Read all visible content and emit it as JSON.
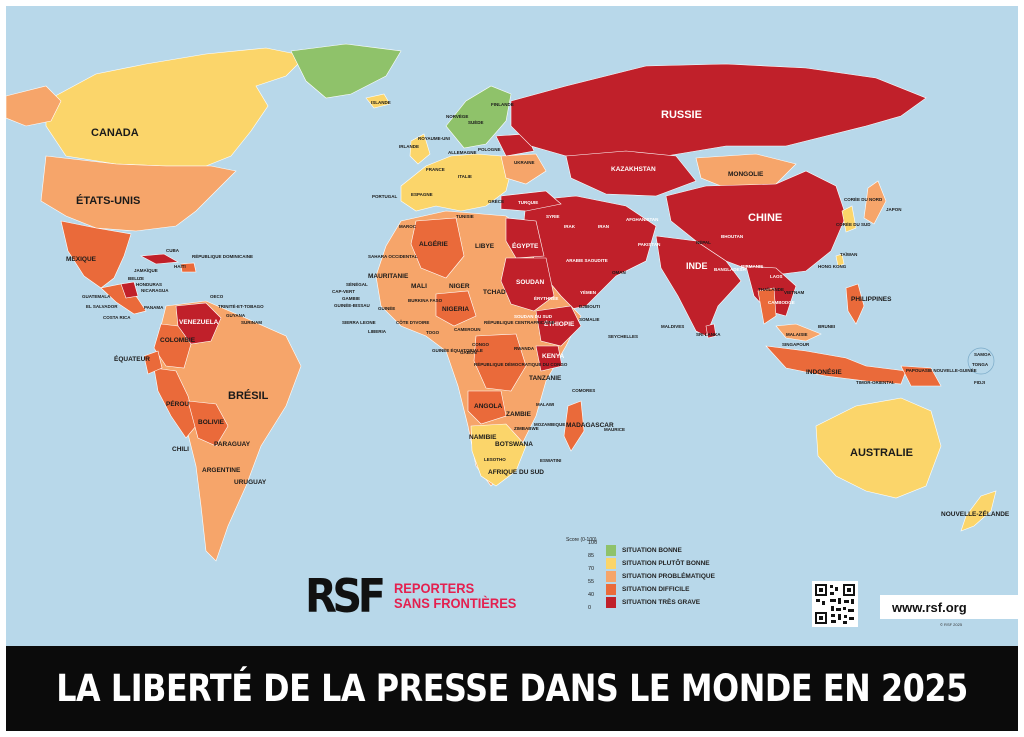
{
  "title": "LA LIBERTÉ DE LA PRESSE DANS LE MONDE EN 2025",
  "colors": {
    "ocean": "#b8d8ea",
    "bonne": "#8fc26a",
    "plutot_bonne": "#fbd56a",
    "problematique": "#f6a56a",
    "difficile": "#ea6a3a",
    "tres_grave": "#c0202a",
    "banner": "#0b0b0b",
    "brand": "#e4204f"
  },
  "legend": {
    "title": "Score (0-100)",
    "ticks": [
      "100",
      "85",
      "70",
      "55",
      "40",
      "0"
    ],
    "items": [
      {
        "label": "SITUATION BONNE",
        "color": "#8fc26a"
      },
      {
        "label": "SITUATION PLUTÔT BONNE",
        "color": "#fbd56a"
      },
      {
        "label": "SITUATION PROBLÉMATIQUE",
        "color": "#f6a56a"
      },
      {
        "label": "SITUATION DIFFICILE",
        "color": "#ea6a3a"
      },
      {
        "label": "SITUATION TRÈS GRAVE",
        "color": "#c0202a"
      }
    ]
  },
  "logo": {
    "mark": "RSF",
    "line1": "REPORTERS",
    "line2": "SANS FRONTIÈRES"
  },
  "url": "www.rsf.org",
  "credit": "© RSF 2025",
  "labels": {
    "russie": "RUSSIE",
    "canada": "CANADA",
    "etats_unis": "ÉTATS-UNIS",
    "chine": "CHINE",
    "bresil": "BRÉSIL",
    "australie": "AUSTRALIE",
    "inde": "INDE",
    "mongolie": "MONGOLIE",
    "kazakhstan": "KAZAKHSTAN",
    "mexique": "MEXIQUE",
    "algerie": "ALGÉRIE",
    "libye": "LIBYE",
    "egypte": "ÉGYPTE",
    "mali": "MALI",
    "niger": "NIGER",
    "tchad": "TCHAD",
    "soudan": "SOUDAN",
    "mauritanie": "MAURITANIE",
    "nigeria": "NIGERIA",
    "ethiopie": "ÉTHIOPIE",
    "kenya": "KENYA",
    "tanzanie": "TANZANIE",
    "angola": "ANGOLA",
    "zambie": "ZAMBIE",
    "namibie": "NAMIBIE",
    "botswana": "BOTSWANA",
    "afrique_du_sud": "AFRIQUE DU SUD",
    "madagascar": "MADAGASCAR",
    "rdc": "RÉPUBLIQUE DÉMOCRATIQUE DU CONGO",
    "venezuela": "VENEZUELA",
    "colombie": "COLOMBIE",
    "perou": "PÉROU",
    "bolivie": "BOLIVIE",
    "paraguay": "PARAGUAY",
    "argentine": "ARGENTINE",
    "chili": "CHILI",
    "uruguay": "URUGUAY",
    "equateur": "ÉQUATEUR",
    "cuba": "CUBA",
    "haiti": "HAÏTI",
    "rep_dominicaine": "RÉPUBLIQUE DOMINICAINE",
    "guatemala": "GUATEMALA",
    "el_salvador": "EL SALVADOR",
    "costa_rica": "COSTA RICA",
    "panama": "PANAMA",
    "nicaragua": "NICARAGUA",
    "honduras": "HONDURAS",
    "belize": "BELIZE",
    "jamaique": "JAMAÏQUE",
    "trinite": "TRINITÉ-ET-TOBAGO",
    "guyana": "GUYANA",
    "surinam": "SURINAM",
    "oeco": "OECO",
    "islande": "ISLANDE",
    "norvege": "NORVÈGE",
    "suede": "SUÈDE",
    "finlande": "FINLANDE",
    "royaume_uni": "ROYAUME-UNI",
    "irlande": "IRLANDE",
    "france": "FRANCE",
    "espagne": "ESPAGNE",
    "portugal": "PORTUGAL",
    "allemagne": "ALLEMAGNE",
    "pologne": "POLOGNE",
    "ukraine": "UKRAINE",
    "italie": "ITALIE",
    "grece": "GRÈCE",
    "turquie": "TURQUIE",
    "syrie": "SYRIE",
    "irak": "IRAK",
    "iran": "IRAN",
    "afghanistan": "AFGHANISTAN",
    "pakistan": "PAKISTAN",
    "arabie": "ARABIE SAOUDITE",
    "yemen": "YÉMEN",
    "oman": "OMAN",
    "erythree": "ÉRYTHRÉE",
    "somalie": "SOMALIE",
    "soudan_sud": "SOUDAN DU SUD",
    "maroc": "MAROC",
    "tunisie": "TUNISIE",
    "senegal": "SÉNÉGAL",
    "cap_vert": "CAP-VERT",
    "gambie": "GAMBIE",
    "guinee_bissau": "GUINÉE-BISSAU",
    "sierra_leone": "SIERRA LEONE",
    "liberia": "LIBERIA",
    "cote_ivoire": "CÔTE D'IVOIRE",
    "togo": "TOGO",
    "burkina": "BURKINA FASO",
    "cameroun": "CAMEROUN",
    "rca": "RÉPUBLIQUE CENTRAFRICAINE",
    "gabon": "GABON",
    "congo": "CONGO",
    "guinee_eq": "GUINÉE ÉQUATORIALE",
    "sahara": "SAHARA OCCIDENTAL",
    "guinee": "GUINÉE",
    "mozambique": "MOZAMBIQUE",
    "zimbabwe": "ZIMBABWE",
    "malawi": "MALAWI",
    "lesotho": "LESOTHO",
    "eswatini": "ESWATINI",
    "maurice": "MAURICE",
    "comores": "COMORES",
    "seychelles": "SEYCHELLES",
    "djibouti": "DJIBOUTI",
    "rwanda": "RWANDA",
    "maldives": "MALDIVES",
    "sri_lanka": "SRI LANKA",
    "nepal": "NÉPAL",
    "bangladesh": "BANGLADESH",
    "birmanie": "BIRMANIE",
    "thailande": "THAÏLANDE",
    "laos": "LAOS",
    "vietnam": "VIETNAM",
    "cambodge": "CAMBODGE",
    "malaisie": "MALAISIE",
    "singapour": "SINGAPOUR",
    "brunei": "BRUNEI",
    "philippines": "PHILIPPINES",
    "indonesie": "INDONÉSIE",
    "timor": "TIMOR-ORIENTAL",
    "papouasie": "PAPOUASIE NOUVELLE-GUINÉE",
    "japon": "JAPON",
    "coree_nord": "CORÉE DU NORD",
    "coree_sud": "CORÉE DU SUD",
    "hong_kong": "HONG KONG",
    "taiwan": "TAÏWAN",
    "bhoutan": "BHOUTAN",
    "samoa": "SAMOA",
    "tonga": "TONGA",
    "fidji": "FIDJI",
    "nouvelle_zelande": "NOUVELLE-ZÉLANDE"
  }
}
